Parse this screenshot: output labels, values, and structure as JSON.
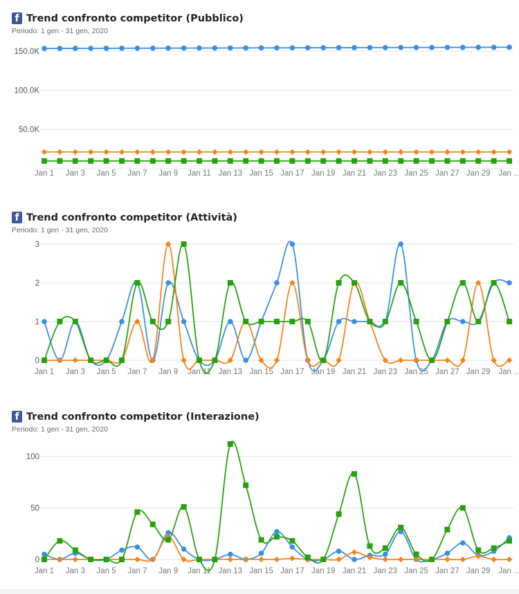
{
  "page": {
    "icon": "facebook-icon",
    "icon_glyph": "f"
  },
  "chart_data": [
    {
      "type": "line",
      "title": "Trend confronto competitor (Pubblico)",
      "subtitle": "Periodo: 1 gen - 31 gen, 2020",
      "x_tick_labels": [
        "Jan 1",
        "Jan 3",
        "Jan 5",
        "Jan 7",
        "Jan 9",
        "Jan 11",
        "Jan 13",
        "Jan 15",
        "Jan 17",
        "Jan 19",
        "Jan 21",
        "Jan 23",
        "Jan 25",
        "Jan 27",
        "Jan 29",
        "Jan ..."
      ],
      "y_ticks": [
        50000,
        100000,
        150000
      ],
      "y_tick_labels": [
        "50.0K",
        "100.0K",
        "150.0K"
      ],
      "ylim": [
        0,
        160000
      ],
      "grid": true,
      "series": [
        {
          "color": "#3b8fde",
          "marker": "circle",
          "values": [
            153500,
            153550,
            153600,
            153650,
            153700,
            153750,
            153800,
            153850,
            153900,
            153950,
            154000,
            154050,
            154100,
            154150,
            154200,
            154250,
            154300,
            154350,
            154400,
            154450,
            154500,
            154550,
            154600,
            154650,
            154700,
            154750,
            154800,
            154850,
            154900,
            154950,
            155000
          ]
        },
        {
          "color": "#f2841c",
          "marker": "diamond",
          "values": [
            21000,
            21000,
            21000,
            21000,
            21000,
            21000,
            21000,
            21000,
            21000,
            21000,
            21000,
            21000,
            21000,
            21000,
            21000,
            21000,
            21000,
            21000,
            21000,
            21000,
            21000,
            21000,
            21000,
            21000,
            21000,
            21000,
            21000,
            21000,
            21000,
            21000,
            21000
          ]
        },
        {
          "color": "#27a10d",
          "marker": "square",
          "values": [
            9500,
            9500,
            9500,
            9500,
            9500,
            9500,
            9500,
            9500,
            9500,
            9500,
            9500,
            9500,
            9500,
            9500,
            9500,
            9500,
            9500,
            9500,
            9500,
            9500,
            9500,
            9500,
            9500,
            9500,
            9500,
            9500,
            9500,
            9500,
            9500,
            9500,
            9500
          ]
        }
      ]
    },
    {
      "type": "line",
      "title": "Trend confronto competitor (Attività)",
      "subtitle": "Periodo: 1 gen - 31 gen, 2020",
      "x_tick_labels": [
        "Jan 1",
        "Jan 3",
        "Jan 5",
        "Jan 7",
        "Jan 9",
        "Jan 11",
        "Jan 13",
        "Jan 15",
        "Jan 17",
        "Jan 19",
        "Jan 21",
        "Jan 23",
        "Jan 25",
        "Jan 27",
        "Jan 29",
        "Jan ..."
      ],
      "y_ticks": [
        0,
        1,
        2,
        3
      ],
      "y_tick_labels": [
        "0",
        "1",
        "2",
        "3"
      ],
      "ylim": [
        0,
        3
      ],
      "grid": true,
      "series": [
        {
          "color": "#3b8fde",
          "marker": "circle",
          "values": [
            1,
            0,
            1,
            0,
            0,
            1,
            2,
            0,
            2,
            1,
            0,
            0,
            1,
            0,
            1,
            2,
            3,
            0,
            0,
            1,
            1,
            1,
            1,
            3,
            0,
            0,
            1,
            1,
            1,
            2,
            2
          ]
        },
        {
          "color": "#f2841c",
          "marker": "diamond",
          "values": [
            0,
            0,
            0,
            0,
            0,
            0,
            1,
            0,
            3,
            0,
            0,
            0,
            0,
            1,
            0,
            0,
            2,
            0,
            0,
            0,
            2,
            1,
            0,
            0,
            0,
            0,
            0,
            0,
            2,
            0,
            0
          ]
        },
        {
          "color": "#27a10d",
          "marker": "square",
          "values": [
            0,
            1,
            1,
            0,
            0,
            0,
            2,
            1,
            1,
            3,
            0,
            0,
            2,
            1,
            1,
            1,
            1,
            1,
            0,
            2,
            2,
            1,
            1,
            2,
            1,
            0,
            1,
            2,
            1,
            2,
            1
          ]
        }
      ]
    },
    {
      "type": "line",
      "title": "Trend confronto competitor (Interazione)",
      "subtitle": "Periodo: 1 gen - 31 gen, 2020",
      "x_tick_labels": [
        "Jan 1",
        "Jan 3",
        "Jan 5",
        "Jan 7",
        "Jan 9",
        "Jan 11",
        "Jan 13",
        "Jan 15",
        "Jan 17",
        "Jan 19",
        "Jan 21",
        "Jan 23",
        "Jan 25",
        "Jan 27",
        "Jan 29",
        "Jan ..."
      ],
      "y_ticks": [
        0,
        50,
        100
      ],
      "y_tick_labels": [
        "0",
        "50",
        "100"
      ],
      "ylim": [
        0,
        120
      ],
      "grid": true,
      "series": [
        {
          "color": "#3b8fde",
          "marker": "circle",
          "values": [
            5,
            0,
            6,
            0,
            0,
            9,
            12,
            0,
            26,
            10,
            0,
            0,
            5,
            0,
            6,
            27,
            12,
            0,
            0,
            8,
            0,
            4,
            5,
            27,
            0,
            0,
            6,
            16,
            4,
            8,
            21
          ]
        },
        {
          "color": "#f2841c",
          "marker": "diamond",
          "values": [
            0,
            0,
            0,
            0,
            0,
            0,
            0,
            0,
            22,
            0,
            0,
            0,
            0,
            0,
            0,
            0,
            1,
            0,
            0,
            0,
            7,
            2,
            0,
            0,
            0,
            0,
            0,
            0,
            3,
            0,
            0
          ]
        },
        {
          "color": "#27a10d",
          "marker": "square",
          "values": [
            0,
            18,
            9,
            0,
            0,
            0,
            46,
            34,
            19,
            51,
            0,
            0,
            112,
            72,
            19,
            22,
            18,
            2,
            0,
            44,
            83,
            13,
            11,
            31,
            5,
            0,
            29,
            50,
            9,
            11,
            18
          ]
        }
      ]
    }
  ]
}
